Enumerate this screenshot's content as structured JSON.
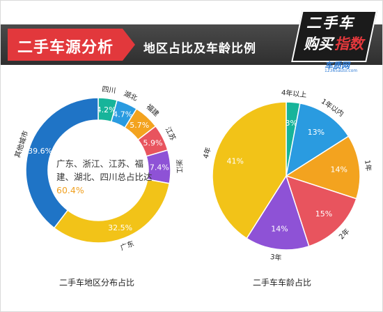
{
  "header": {
    "title": "二手车源分析",
    "subtitle": "地区占比及车龄比例"
  },
  "logo": {
    "line1": "二手车",
    "line2a": "购买",
    "line2b": "指数",
    "site": "车质网",
    "site_sub": "12365auto.com"
  },
  "colors": {
    "header_red": "#e2383c",
    "header_dark": "#3a3a3a"
  },
  "center_note": {
    "text": "广东、浙江、江苏、福建、湖北、四川总占比达",
    "highlight": "60.4%"
  },
  "chart_data": [
    {
      "type": "pie",
      "variant": "donut",
      "caption": "二手车地区分布占比",
      "slices": [
        {
          "label": "四川",
          "value": 4.2,
          "display": "4.2%",
          "color": "#17b49a"
        },
        {
          "label": "湖北",
          "value": 4.7,
          "display": "4.7%",
          "color": "#2a9be0"
        },
        {
          "label": "福建",
          "value": 5.7,
          "display": "5.7%",
          "color": "#f3a31f"
        },
        {
          "label": "江苏",
          "value": 5.9,
          "display": "5.9%",
          "color": "#e8545e"
        },
        {
          "label": "浙江",
          "value": 7.4,
          "display": "7.4%",
          "color": "#8e52d6"
        },
        {
          "label": "广东",
          "value": 32.5,
          "display": "32.5%",
          "color": "#f2c318"
        },
        {
          "label": "其他城市",
          "value": 39.6,
          "display": "39.6%",
          "color": "#1f74c6"
        }
      ]
    },
    {
      "type": "pie",
      "caption": "二手车车龄占比",
      "slices": [
        {
          "label": "4年以上",
          "value": 3,
          "display": "3%",
          "color": "#17b49a"
        },
        {
          "label": "1年以内",
          "value": 13,
          "display": "13%",
          "color": "#2a9be0"
        },
        {
          "label": "1年",
          "value": 14,
          "display": "14%",
          "color": "#f3a31f"
        },
        {
          "label": "2年",
          "value": 15,
          "display": "15%",
          "color": "#e8545e"
        },
        {
          "label": "3年",
          "value": 14,
          "display": "14%",
          "color": "#8e52d6"
        },
        {
          "label": "4年",
          "value": 41,
          "display": "41%",
          "color": "#f2c318"
        }
      ]
    }
  ]
}
